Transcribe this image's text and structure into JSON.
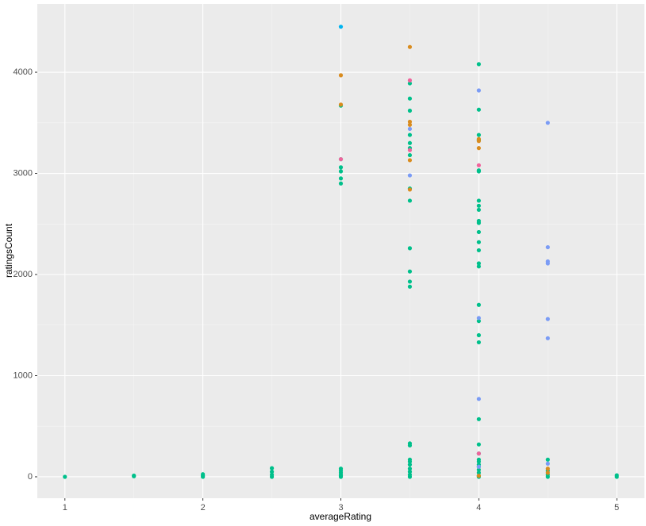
{
  "chart_data": {
    "type": "scatter",
    "x_label": "averageRating",
    "y_label": "ratingsCount",
    "xlim": [
      0.8,
      5.2
    ],
    "ylim": [
      -212,
      4675
    ],
    "xticks": [
      1,
      2,
      3,
      4,
      5
    ],
    "yticks": [
      0,
      1000,
      2000,
      3000,
      4000
    ],
    "grid": true,
    "series": [
      {
        "color": "#00c08b",
        "x": [
          1,
          1.5,
          1.5,
          2,
          2,
          2,
          2.5,
          2.5,
          2.5,
          2.5,
          3,
          3,
          3,
          3,
          3,
          3,
          3,
          3,
          3,
          3,
          3,
          3,
          3.5,
          3.5,
          3.5,
          3.5,
          3.5,
          3.5,
          3.5,
          3.5,
          3.5,
          3.5,
          3.5,
          3.5,
          3.5,
          3.5,
          3.5,
          3.5,
          3.5,
          3.5,
          3.5,
          3.5,
          3.5,
          3.5,
          4,
          4,
          4,
          4,
          4,
          4,
          4,
          4,
          4,
          4,
          4,
          4,
          4,
          4,
          4,
          4,
          4,
          4,
          4,
          4,
          4,
          4,
          4,
          4,
          4,
          4,
          4,
          4,
          4,
          4,
          4,
          4.5,
          4.5,
          4.5,
          4.5,
          5,
          5
        ],
        "values": [
          0,
          5,
          12,
          0,
          10,
          25,
          0,
          20,
          50,
          85,
          2900,
          2950,
          3020,
          3060,
          3140,
          3670,
          0,
          10,
          20,
          40,
          60,
          80,
          3890,
          3740,
          3620,
          3380,
          3300,
          3250,
          3180,
          2850,
          2730,
          2260,
          2030,
          1930,
          1880,
          330,
          310,
          170,
          150,
          120,
          80,
          50,
          20,
          0,
          4080,
          3630,
          3380,
          3330,
          3030,
          3020,
          2730,
          2680,
          2640,
          2530,
          2510,
          2420,
          2320,
          2240,
          2110,
          2080,
          1700,
          1540,
          1400,
          1330,
          570,
          320,
          230,
          170,
          150,
          120,
          100,
          70,
          40,
          10,
          0,
          170,
          60,
          20,
          0,
          0,
          15
        ]
      },
      {
        "color": "#d98c1f",
        "x": [
          3,
          3,
          3.5,
          3.5,
          3.5,
          3.5,
          3.5,
          4,
          4,
          4,
          4,
          4.5,
          4.5
        ],
        "values": [
          3970,
          3680,
          4250,
          3510,
          3480,
          3130,
          2840,
          3340,
          3320,
          3250,
          10,
          80,
          40
        ]
      },
      {
        "color": "#00b4f0",
        "x": [
          3
        ],
        "values": [
          4450
        ]
      },
      {
        "color": "#7b9cf5",
        "x": [
          3.5,
          3.5,
          4,
          4,
          4,
          4,
          4.5,
          4.5,
          4.5,
          4.5,
          4.5,
          4.5,
          4.5
        ],
        "values": [
          3440,
          2980,
          3820,
          1570,
          770,
          100,
          3500,
          2270,
          2130,
          2110,
          1560,
          1370,
          130
        ]
      },
      {
        "color": "#f0649c",
        "x": [
          3,
          3.5,
          3.5,
          4,
          4
        ],
        "values": [
          3140,
          3920,
          3230,
          3080,
          230
        ]
      }
    ]
  }
}
